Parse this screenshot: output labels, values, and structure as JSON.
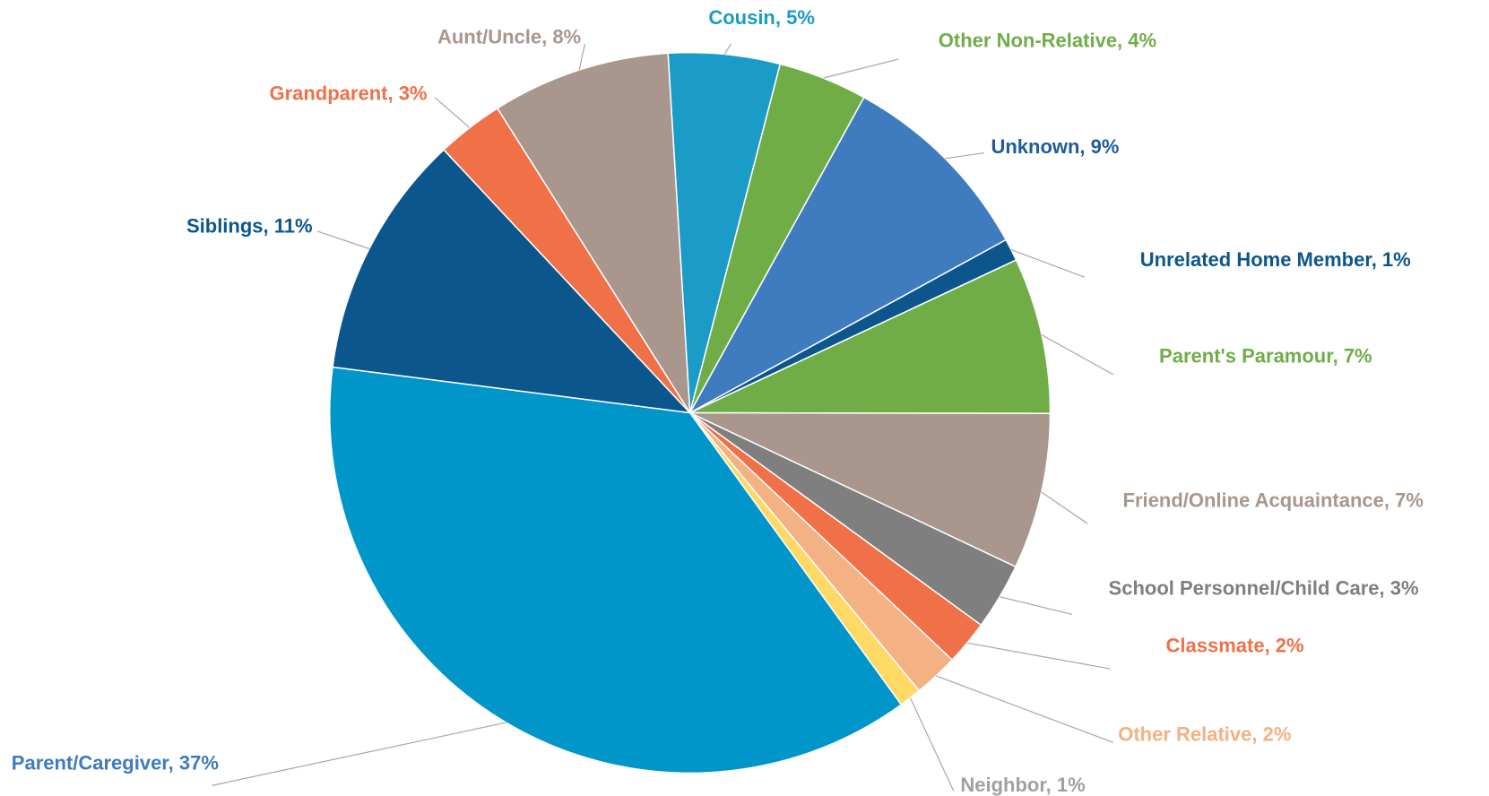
{
  "chart_data": {
    "type": "pie",
    "value_labels": [
      "Cousin, 5%",
      "Other Non-Relative, 4%",
      "Unknown, 9%",
      "Unrelated Home Member, 1%",
      "Parent's Paramour, 7%",
      "Friend/Online Acquaintance, 7%",
      "School Personnel/Child Care, 3%",
      "Classmate, 2%",
      "Other Relative, 2%",
      "Neighbor, 1%",
      "Parent/Caregiver, 37%",
      "Siblings, 11%",
      "Grandparent, 3%",
      "Aunt/Uncle, 8%"
    ],
    "values": [
      5,
      4,
      9,
      1,
      7,
      7,
      3,
      2,
      2,
      1,
      37,
      11,
      3,
      8
    ],
    "colors": [
      "#1a9bc8",
      "#70ad47",
      "#3e7bbf",
      "#0c568e",
      "#70ad47",
      "#a9968c",
      "#7f7f7f",
      "#f07048",
      "#f4b183",
      "#ffd966",
      "#0096c9",
      "#0c568e",
      "#f07048",
      "#a9968c"
    ],
    "label_colors": [
      "#1a9bc8",
      "#70ad47",
      "#1f5c99",
      "#0c568e",
      "#70ad47",
      "#a9968c",
      "#7f7f7f",
      "#f07048",
      "#f4b183",
      "#a0a0a0",
      "#3e7bbf",
      "#0c568e",
      "#f07048",
      "#a9968c"
    ]
  }
}
